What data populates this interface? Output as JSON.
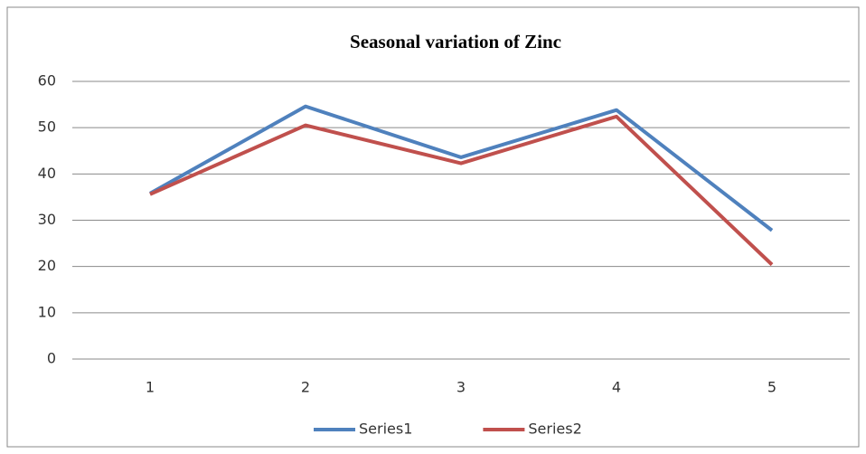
{
  "chart_data": {
    "type": "line",
    "title": "Seasonal variation of Zinc",
    "categories": [
      "1",
      "2",
      "3",
      "4",
      "5"
    ],
    "series": [
      {
        "name": "Series1",
        "color": "#4f81bd",
        "values": [
          35.8,
          54.6,
          43.6,
          53.8,
          27.8
        ]
      },
      {
        "name": "Series2",
        "color": "#c0504d",
        "values": [
          35.6,
          50.5,
          42.3,
          52.4,
          20.4
        ]
      }
    ],
    "ylim": [
      0,
      60
    ],
    "yticks": [
      0,
      10,
      20,
      30,
      40,
      50,
      60
    ],
    "grid": true,
    "legend": "bottom"
  }
}
